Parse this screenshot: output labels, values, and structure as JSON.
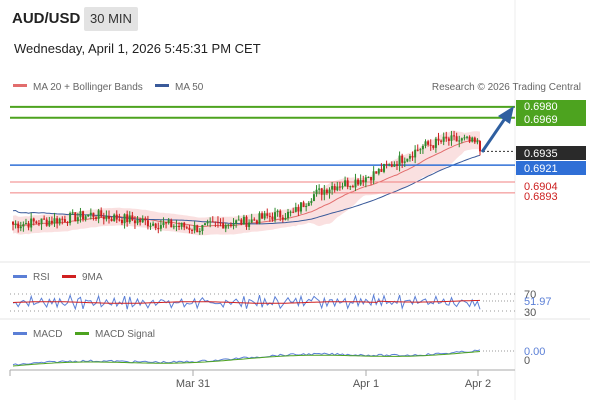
{
  "header": {
    "symbol": "AUD/USD",
    "timeframe": "30 MIN",
    "datetime": "Wednesday, April 1, 2026 5:45:31 PM CET"
  },
  "legend": {
    "ma20": "MA 20 + Bollinger Bands",
    "ma50": "MA 50",
    "rsi": "RSI",
    "rsi_ma": "9MA",
    "macd": "MACD",
    "macd_signal": "MACD Signal"
  },
  "copyright": "Research © 2026 Trading Central",
  "colors": {
    "up": "#2e8b2e",
    "down": "#cc1f1f",
    "ma20": "#e26d6d",
    "ma50": "#3a5a9a",
    "band": "#f8d6d6",
    "resistance": "#4da31f",
    "support": "#f08080",
    "pivot": "#2f6fd6",
    "arrow": "#2f5fa0",
    "rsi": "#5b7fd6",
    "rsi_ma": "#d02020",
    "macd": "#5b7fd6",
    "macd_signal": "#4da31f"
  },
  "chart_data": {
    "type": "candlestick",
    "y_range": [
      0.6815,
      0.6995
    ],
    "x_labels": [
      "Mar 31",
      "Apr 1",
      "Apr 2"
    ],
    "levels": {
      "resistance": [
        0.698,
        0.6969
      ],
      "pivot": 0.6921,
      "support": [
        0.6904,
        0.6893
      ],
      "last_price": 0.6935
    },
    "level_labels": [
      "0.6980",
      "0.6969",
      "0.6935",
      "0.6921",
      "0.6904",
      "0.6893"
    ],
    "rsi": {
      "levels": [
        "70",
        "30"
      ],
      "value": "51.97"
    },
    "macd": {
      "levels": [
        "0"
      ],
      "value": "0.00"
    }
  }
}
